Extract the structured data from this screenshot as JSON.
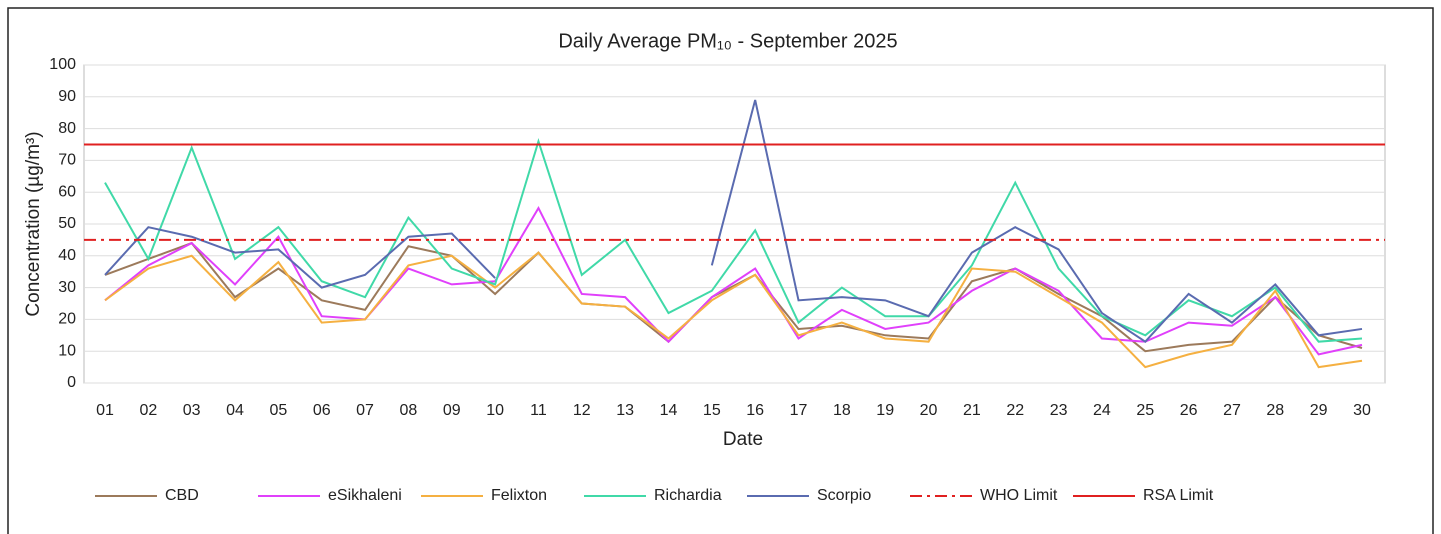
{
  "chart_data": {
    "type": "line",
    "title": "Daily Average  PM₁₀ - September 2025",
    "x_label": "Date",
    "y_label": "Concentration (µg/m³)",
    "categories": [
      "01",
      "02",
      "03",
      "04",
      "05",
      "06",
      "07",
      "08",
      "09",
      "10",
      "11",
      "12",
      "13",
      "14",
      "15",
      "16",
      "17",
      "18",
      "19",
      "20",
      "21",
      "22",
      "23",
      "24",
      "25",
      "26",
      "27",
      "28",
      "29",
      "30"
    ],
    "ylim": [
      0,
      100
    ],
    "yticks": [
      0,
      10,
      20,
      30,
      40,
      50,
      60,
      70,
      80,
      90,
      100
    ],
    "grid": true,
    "legend": "bottom",
    "series": [
      {
        "name": "CBD",
        "color": "#9c7a5b",
        "values": [
          34,
          39,
          44,
          27,
          36,
          26,
          23,
          43,
          40,
          28,
          41,
          25,
          24,
          13,
          27,
          34,
          17,
          18,
          15,
          14,
          32,
          36,
          28,
          21,
          10,
          12,
          13,
          27,
          15,
          11
        ]
      },
      {
        "name": "eSikhaleni",
        "color": "#e040fb",
        "values": [
          26,
          37,
          44,
          31,
          46,
          21,
          20,
          36,
          31,
          32,
          55,
          28,
          27,
          13,
          27,
          36,
          14,
          23,
          17,
          19,
          29,
          36,
          29,
          14,
          13,
          19,
          18,
          27,
          9,
          12
        ]
      },
      {
        "name": "Felixton",
        "color": "#f5b041",
        "values": [
          26,
          36,
          40,
          26,
          38,
          19,
          20,
          37,
          40,
          30,
          41,
          25,
          24,
          14,
          26,
          34,
          15,
          19,
          14,
          13,
          36,
          35,
          27,
          19,
          5,
          9,
          12,
          29,
          5,
          7
        ]
      },
      {
        "name": "Richardia",
        "color": "#40d9a8",
        "values": [
          63,
          39,
          74,
          39,
          49,
          32,
          27,
          52,
          36,
          31,
          76,
          34,
          45,
          22,
          29,
          48,
          19,
          30,
          21,
          21,
          37,
          63,
          36,
          21,
          15,
          26,
          21,
          30,
          13,
          14
        ]
      },
      {
        "name": "Scorpio",
        "color": "#5a6bb0",
        "values": [
          34,
          49,
          46,
          41,
          42,
          30,
          34,
          46,
          47,
          33,
          null,
          null,
          null,
          null,
          37,
          89,
          26,
          27,
          26,
          21,
          41,
          49,
          42,
          22,
          13,
          28,
          19,
          31,
          15,
          17
        ]
      }
    ],
    "reference_lines": [
      {
        "name": "WHO Limit",
        "value": 45,
        "color": "#e02020",
        "dashed": true
      },
      {
        "name": "RSA Limit",
        "value": 75,
        "color": "#e02020",
        "dashed": false
      }
    ]
  }
}
